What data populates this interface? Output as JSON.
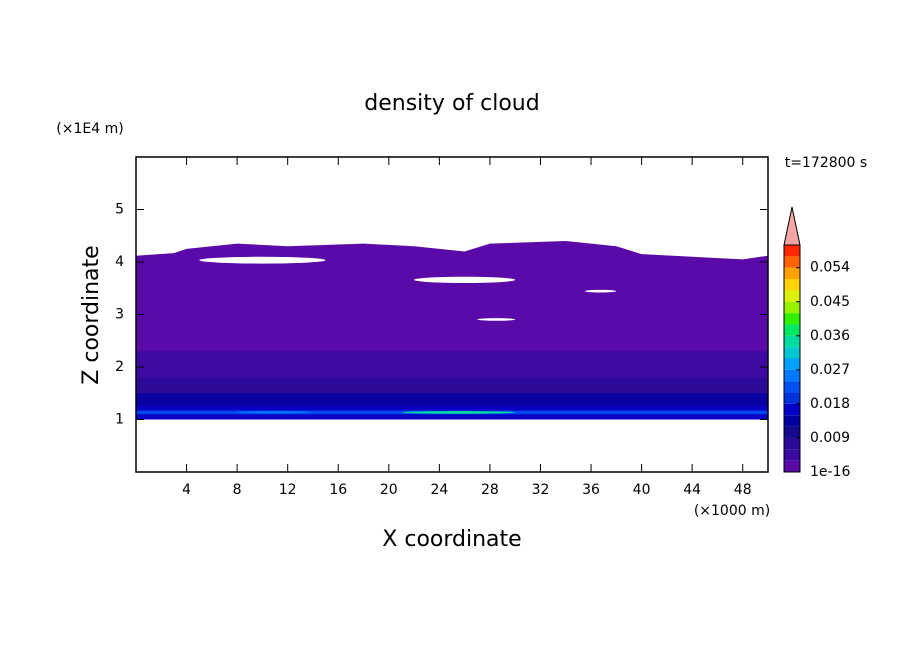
{
  "chart_data": {
    "type": "contour",
    "title": "density of cloud",
    "x_label": "X coordinate",
    "y_label": "Z coordinate",
    "x_unit": "(×1000 m)",
    "y_unit": "(×1E4 m)",
    "time_label": "t=172800 s",
    "xlim": [
      0,
      50
    ],
    "ylim": [
      0,
      6
    ],
    "xticks": [
      4,
      8,
      12,
      16,
      20,
      24,
      28,
      32,
      36,
      40,
      44,
      48
    ],
    "yticks": [
      1,
      2,
      3,
      4,
      5
    ],
    "cloud_top": {
      "x": [
        0,
        3,
        4,
        8,
        12,
        18,
        22,
        26,
        28,
        34,
        38,
        40,
        44,
        48,
        50
      ],
      "z": [
        4.12,
        4.17,
        4.25,
        4.35,
        4.3,
        4.35,
        4.3,
        4.2,
        4.35,
        4.4,
        4.3,
        4.15,
        4.1,
        4.05,
        4.12
      ]
    },
    "cloud_base": 1.0,
    "layers": [
      {
        "z": [
          2.3,
          2.8
        ],
        "value": 0.002
      },
      {
        "z": [
          1.8,
          2.3
        ],
        "value": 0.004
      },
      {
        "z": [
          1.5,
          1.8
        ],
        "value": 0.008
      },
      {
        "z": [
          1.25,
          1.5
        ],
        "value": 0.013
      },
      {
        "z": [
          1.0,
          1.25
        ],
        "value": 0.017
      },
      {
        "z": [
          1.1,
          1.17
        ],
        "value": 0.022
      }
    ],
    "patches": [
      {
        "x": [
          21,
          30
        ],
        "z": [
          1.11,
          1.16
        ],
        "value": 0.033
      },
      {
        "x": [
          8,
          14
        ],
        "z": [
          1.12,
          1.16
        ],
        "value": 0.026
      }
    ],
    "clear": [
      {
        "x": [
          5,
          15
        ],
        "z": [
          3.97,
          4.1
        ]
      },
      {
        "x": [
          22,
          30
        ],
        "z": [
          3.6,
          3.72
        ]
      },
      {
        "x": [
          35.5,
          38
        ],
        "z": [
          3.42,
          3.47
        ]
      },
      {
        "x": [
          27,
          30
        ],
        "z": [
          2.88,
          2.93
        ]
      }
    ],
    "colorbar": {
      "levels": [
        1e-16,
        0.003,
        0.006,
        0.009,
        0.012,
        0.015,
        0.018,
        0.021,
        0.024,
        0.027,
        0.03,
        0.033,
        0.036,
        0.039,
        0.042,
        0.045,
        0.048,
        0.051,
        0.054,
        0.057,
        0.06
      ],
      "colors": [
        "#5a0aa8",
        "#3c0aa0",
        "#280a96",
        "#140a8c",
        "#0000a0",
        "#0000c8",
        "#0032dc",
        "#0050f0",
        "#0078ff",
        "#00a0ff",
        "#00c8d2",
        "#00dca0",
        "#00e664",
        "#32f000",
        "#96f000",
        "#dcf000",
        "#ffd200",
        "#ffa000",
        "#ff6400",
        "#ff2800"
      ],
      "extend_color": "#f4a6a6",
      "ticks": [
        1e-16,
        0.009,
        0.018,
        0.027,
        0.036,
        0.045,
        0.054
      ]
    }
  }
}
